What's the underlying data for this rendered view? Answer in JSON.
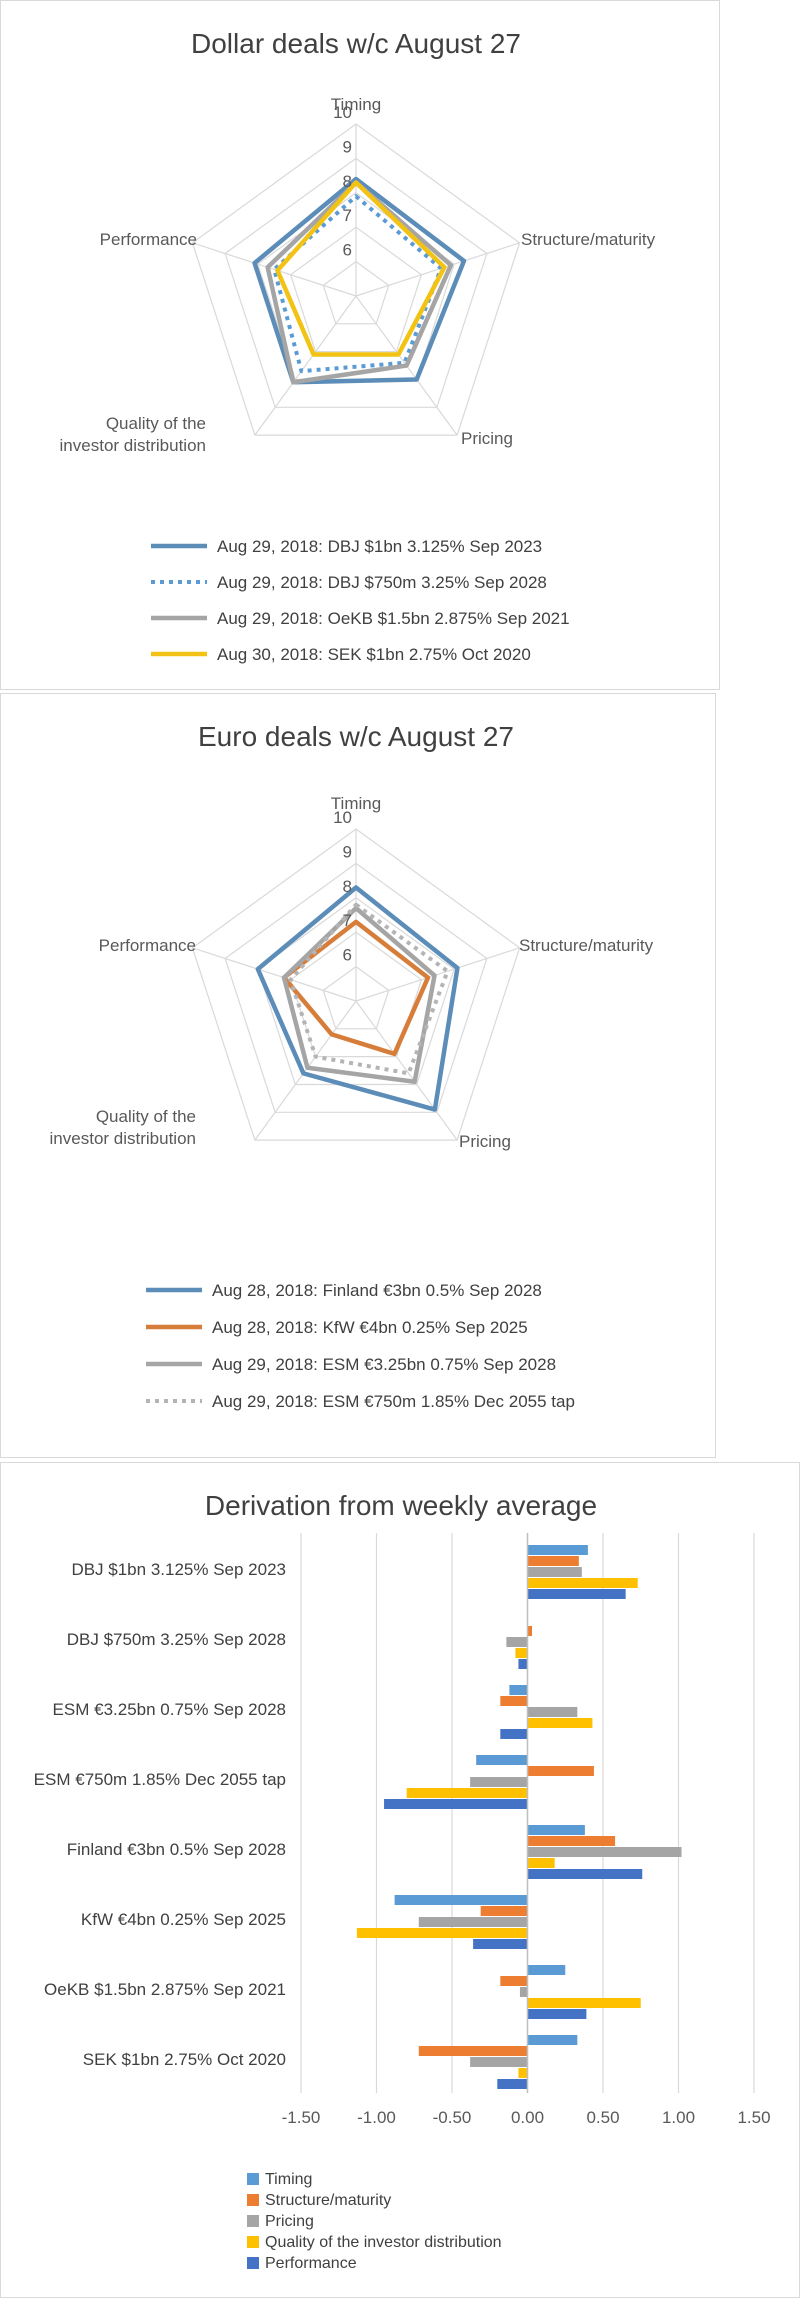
{
  "chart_data": [
    {
      "type": "radar",
      "title": "Dollar deals w/c August 27",
      "axes": [
        "Timing",
        "Structure/maturity",
        "Pricing",
        "Quality of the investor distribution",
        "Performance"
      ],
      "axis_label_lines": [
        [
          "Timing"
        ],
        [
          "Structure/maturity"
        ],
        [
          "Pricing"
        ],
        [
          "Quality of the",
          "investor distribution"
        ],
        [
          "Performance"
        ]
      ],
      "ticks": [
        "6",
        "7",
        "8",
        "9",
        "10"
      ],
      "range": [
        5,
        10
      ],
      "series": [
        {
          "name": "Aug 29, 2018: DBJ $1bn 3.125% Sep 2023",
          "values": [
            8.4,
            8.3,
            8.0,
            8.1,
            8.1
          ],
          "color": "#5b8db8",
          "dash": "none"
        },
        {
          "name": "Aug 29, 2018: DBJ $750m 3.25% Sep 2028",
          "values": [
            7.9,
            7.6,
            7.4,
            7.7,
            7.5
          ],
          "color": "#5b9bd5",
          "dash": "dotted"
        },
        {
          "name": "Aug 29, 2018: OeKB $1.5bn 2.875% Sep 2021",
          "values": [
            8.3,
            7.9,
            7.5,
            8.1,
            7.7
          ],
          "color": "#a5a5a5",
          "dash": "none"
        },
        {
          "name": "Aug 30, 2018: SEK $1bn 2.75% Oct 2020",
          "values": [
            8.3,
            7.7,
            7.1,
            7.1,
            7.4
          ],
          "color": "#f2c314",
          "dash": "none"
        }
      ]
    },
    {
      "type": "radar",
      "title": "Euro deals w/c August 27",
      "axes": [
        "Timing",
        "Structure/maturity",
        "Pricing",
        "Quality of the investor distribution",
        "Performance"
      ],
      "axis_label_lines": [
        [
          "Timing"
        ],
        [
          "Structure/maturity"
        ],
        [
          "Pricing"
        ],
        [
          "Quality of the",
          "investor distribution"
        ],
        [
          "Performance"
        ]
      ],
      "ticks": [
        "6",
        "7",
        "8",
        "9",
        "10"
      ],
      "range": [
        5,
        10
      ],
      "series": [
        {
          "name": "Aug 28, 2018: Finland €3bn 0.5% Sep 2028",
          "values": [
            8.3,
            8.1,
            8.9,
            7.6,
            8.0
          ],
          "color": "#5b8db8",
          "dash": "none"
        },
        {
          "name": "Aug 28, 2018: KfW €4bn 0.25% Sep 2025",
          "values": [
            7.3,
            7.2,
            6.9,
            6.2,
            7.2
          ],
          "color": "#d77d3a",
          "dash": "none"
        },
        {
          "name": "Aug 29, 2018: ESM €3.25bn 0.75% Sep 2028",
          "values": [
            7.7,
            7.4,
            7.9,
            7.4,
            7.2
          ],
          "color": "#a5a5a5",
          "dash": "none"
        },
        {
          "name": "Aug 29, 2018: ESM €750m 1.85% Dec 2055 tap",
          "values": [
            7.8,
            7.8,
            7.6,
            7.0,
            7.0
          ],
          "color": "#b4b4b4",
          "dash": "dotted"
        }
      ]
    },
    {
      "type": "bar",
      "orientation": "horizontal",
      "title": "Derivation from weekly average",
      "categories": [
        "DBJ $1bn 3.125% Sep 2023",
        "DBJ $750m 3.25% Sep 2028",
        "ESM €3.25bn 0.75% Sep 2028",
        "ESM €750m 1.85% Dec 2055 tap",
        "Finland €3bn 0.5% Sep 2028",
        "KfW €4bn 0.25% Sep 2025",
        "OeKB $1.5bn 2.875% Sep 2021",
        "SEK $1bn 2.75% Oct 2020"
      ],
      "xlim": [
        -1.5,
        1.5
      ],
      "xticks": [
        "-1.50",
        "-1.00",
        "-0.50",
        "0.00",
        "0.50",
        "1.00",
        "1.50"
      ],
      "series": [
        {
          "name": "Timing",
          "color": "#5b9bd5",
          "values": [
            0.4,
            0.0,
            -0.12,
            -0.34,
            0.38,
            -0.88,
            0.25,
            0.33
          ]
        },
        {
          "name": "Structure/maturity",
          "color": "#ed7d31",
          "values": [
            0.34,
            0.03,
            -0.18,
            0.44,
            0.58,
            -0.31,
            -0.18,
            -0.72
          ]
        },
        {
          "name": "Pricing",
          "color": "#a5a5a5",
          "values": [
            0.36,
            -0.14,
            0.33,
            -0.38,
            1.02,
            -0.72,
            -0.05,
            -0.38
          ]
        },
        {
          "name": "Quality of the investor distribution",
          "color": "#ffc000",
          "values": [
            0.73,
            -0.08,
            0.43,
            -0.8,
            0.18,
            -1.13,
            0.75,
            -0.06
          ]
        },
        {
          "name": "Performance",
          "color": "#4472c4",
          "values": [
            0.65,
            -0.06,
            -0.18,
            -0.95,
            0.76,
            -0.36,
            0.39,
            -0.2
          ]
        }
      ]
    }
  ]
}
